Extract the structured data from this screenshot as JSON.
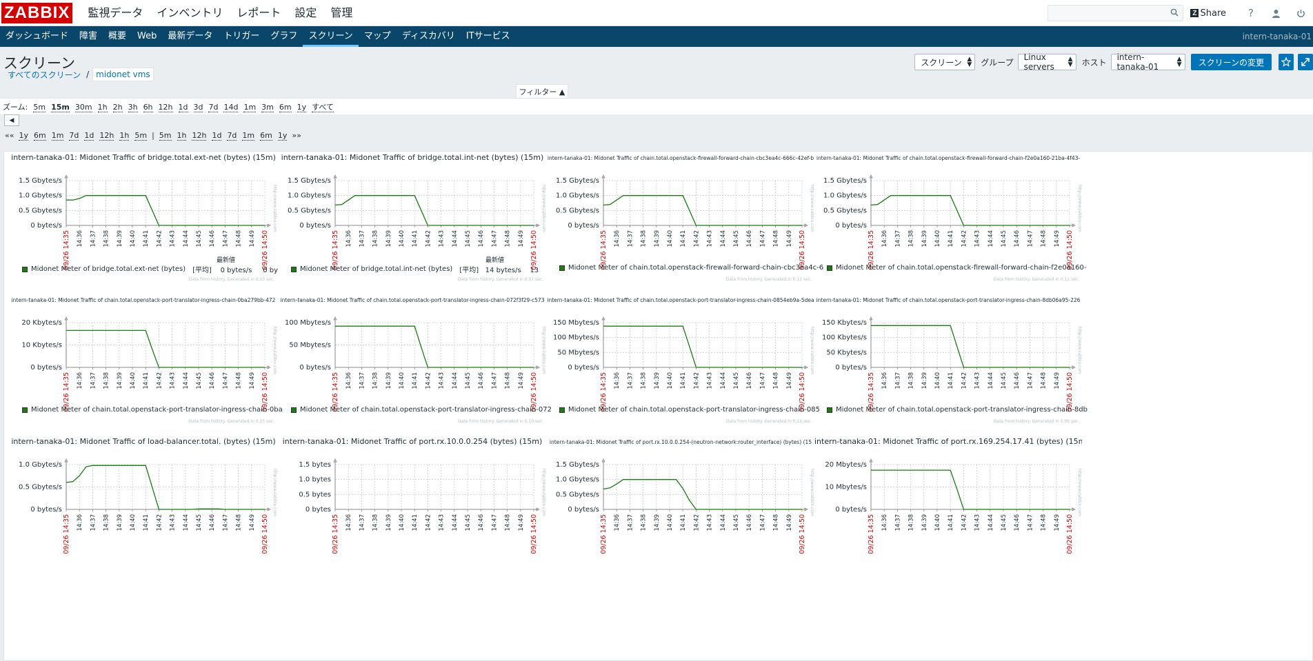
{
  "logo": "ZABBIX",
  "main_menu": [
    "監視データ",
    "インベントリ",
    "レポート",
    "設定",
    "管理"
  ],
  "top_right": {
    "share": "Share",
    "help": "?"
  },
  "sub_menu": {
    "items": [
      "ダッシュボード",
      "障害",
      "概要",
      "Web",
      "最新データ",
      "トリガー",
      "グラフ",
      "スクリーン",
      "マップ",
      "ディスカバリ",
      "ITサービス"
    ],
    "active": "スクリーン",
    "hostname": "intern-tanaka-01"
  },
  "header": {
    "title": "スクリーン",
    "view_select": "スクリーン",
    "group_label": "グループ",
    "group_value": "Linux servers",
    "host_label": "ホスト",
    "host_value": "intern-tanaka-01",
    "change_button": "スクリーンの変更"
  },
  "breadcrumb": {
    "all": "すべてのスクリーン",
    "sep": "/",
    "current": "midonet vms"
  },
  "filter_tab": "フィルター ▲",
  "zoom": {
    "label": "ズーム:",
    "options": [
      "5m",
      "15m",
      "30m",
      "1h",
      "2h",
      "3h",
      "6h",
      "12h",
      "1d",
      "3d",
      "7d",
      "14d",
      "1m",
      "3m",
      "6m",
      "1y",
      "すべて"
    ],
    "selected": "15m"
  },
  "period_nav": {
    "back_start": "««",
    "back": [
      "1y",
      "6m",
      "1m",
      "7d",
      "1d",
      "12h",
      "1h",
      "5m"
    ],
    "sep": "|",
    "forward": [
      "5m",
      "1h",
      "12h",
      "1d",
      "7d",
      "1m",
      "6m",
      "1y"
    ],
    "forward_end": "»»"
  },
  "graphs": [
    {
      "title": "intern-tanaka-01: Midonet Traffic of bridge.total.ext-net (bytes) (15m)",
      "size": "big",
      "legend": "Midonet Meter of bridge.total.ext-net (bytes)",
      "legend_extra": "[平均]    0 bytes/s     0 by",
      "latest_label": "最新値",
      "footer": "Data from history. Generated in 0.03 sec.",
      "yticks": [
        "1.5 Gbytes/s",
        "1.0 Gbytes/s",
        "0.5 Gbytes/s",
        "0 bytes/s"
      ],
      "ymax": 1.5,
      "series": [
        0.85,
        0.85,
        0.9,
        1.0,
        1.0,
        1.0,
        1.0,
        1.0,
        1.0,
        1.0,
        1.0,
        1.0,
        1.0,
        0.5,
        0.0,
        0.0,
        0.0,
        0.0,
        0.0,
        0.0,
        0.0,
        0.0,
        0.0,
        0.0,
        0.0,
        0.0,
        0.0,
        0.0,
        0.0,
        0.0,
        0.0
      ]
    },
    {
      "title": "intern-tanaka-01: Midonet Traffic of bridge.total.int-net (bytes) (15m)",
      "size": "big",
      "legend": "Midonet Meter of bridge.total.int-net (bytes)",
      "legend_extra": "[平均]   14 bytes/s    13",
      "latest_label": "最新値",
      "footer": "Data from history. Generated in 0.07 sec.",
      "yticks": [
        "1.5 Gbytes/s",
        "1.0 Gbytes/s",
        "0.5 Gbytes/s",
        "0 bytes/s"
      ],
      "ymax": 1.5,
      "series": [
        0.68,
        0.7,
        0.85,
        1.0,
        1.0,
        1.0,
        1.0,
        1.0,
        1.0,
        1.0,
        1.0,
        1.0,
        1.0,
        0.5,
        0.0,
        0.0,
        0.0,
        0.0,
        0.0,
        0.0,
        0.0,
        0.0,
        0.0,
        0.0,
        0.0,
        0.0,
        0.0,
        0.0,
        0.0,
        0.0,
        0.0
      ]
    },
    {
      "title": "intern-tanaka-01: Midonet Traffic of chain.total.openstack-firewall-forward-chain-cbc3ea4c-666c-42ef-b",
      "size": "small",
      "legend": "Midonet Meter of chain.total.openstack-firewall-forward-chain-cbc3ea4c-6",
      "legend_extra": "",
      "latest_label": "",
      "footer": "Data from history. Generated in 0.12 sec.",
      "yticks": [
        "1.5 Gbytes/s",
        "1.0 Gbytes/s",
        "0.5 Gbytes/s",
        "0 bytes/s"
      ],
      "ymax": 1.5,
      "series": [
        0.68,
        0.7,
        0.85,
        1.0,
        1.0,
        1.0,
        1.0,
        1.0,
        1.0,
        1.0,
        1.0,
        1.0,
        1.0,
        0.5,
        0.0,
        0.0,
        0.0,
        0.0,
        0.0,
        0.0,
        0.0,
        0.0,
        0.0,
        0.0,
        0.0,
        0.0,
        0.0,
        0.0,
        0.0,
        0.0,
        0.0
      ]
    },
    {
      "title": "intern-tanaka-01: Midonet Traffic of chain.total.openstack-firewall-forward-chain-f2e0a160-21ba-4f43-",
      "size": "small",
      "legend": "Midonet Meter of chain.total.openstack-firewall-forward-chain-f2e0a160-",
      "legend_extra": "",
      "latest_label": "",
      "footer": "Data from history. Generated in 0.11 sec.",
      "yticks": [
        "1.5 Gbytes/s",
        "1.0 Gbytes/s",
        "0.5 Gbytes/s",
        "0 bytes/s"
      ],
      "ymax": 1.5,
      "series": [
        0.68,
        0.7,
        0.85,
        1.0,
        1.0,
        1.0,
        1.0,
        1.0,
        1.0,
        1.0,
        1.0,
        1.0,
        1.0,
        0.5,
        0.0,
        0.0,
        0.0,
        0.0,
        0.0,
        0.0,
        0.0,
        0.0,
        0.0,
        0.0,
        0.0,
        0.0,
        0.0,
        0.0,
        0.0,
        0.0,
        0.0
      ]
    },
    {
      "title": "intern-tanaka-01: Midonet Traffic of chain.total.openstack-port-translator-ingress-chain-0ba279bb-472",
      "size": "small",
      "legend": "Midonet Meter of chain.total.openstack-port-translator-ingress-chain-0ba",
      "legend_extra": "",
      "latest_label": "",
      "footer": "Data from history. Generated in 0.15 sec.",
      "yticks": [
        "20 Kbytes/s",
        "10 Kbytes/s",
        "0 bytes/s"
      ],
      "ymax": 20,
      "series": [
        16.5,
        16.5,
        16.5,
        16.5,
        16.5,
        16.5,
        16.5,
        16.5,
        16.5,
        16.5,
        16.5,
        16.5,
        16.5,
        8,
        0.0,
        0.0,
        0.0,
        0.0,
        0.0,
        0.0,
        0.0,
        0.0,
        0.0,
        0.0,
        0.0,
        0.0,
        0.0,
        0.0,
        0.0,
        0.0,
        0.0
      ]
    },
    {
      "title": "intern-tanaka-01: Midonet Traffic of chain.total.openstack-port-translator-ingress-chain-072f3f29-c573",
      "size": "small",
      "legend": "Midonet Meter of chain.total.openstack-port-translator-ingress-chain-072",
      "legend_extra": "",
      "latest_label": "",
      "footer": "Data from history. Generated in 0.10 sec.",
      "yticks": [
        "100 Mbytes/s",
        "50 Mbytes/s",
        "0 bytes/s"
      ],
      "ymax": 100,
      "series": [
        92,
        92,
        92,
        92,
        92,
        92,
        92,
        92,
        92,
        92,
        92,
        92,
        92,
        45,
        0.0,
        0.0,
        0.0,
        0.0,
        0.0,
        0.0,
        0.0,
        0.0,
        0.0,
        0.0,
        0.0,
        0.0,
        0.0,
        0.0,
        0.0,
        0.0,
        0.0
      ]
    },
    {
      "title": "intern-tanaka-01: Midonet Traffic of chain.total.openstack-port-translator-ingress-chain-0854eb9a-5dea",
      "size": "small",
      "legend": "Midonet Meter of chain.total.openstack-port-translator-ingress-chain-085",
      "legend_extra": "",
      "latest_label": "",
      "footer": "Data from history. Generated in 0.13 sec.",
      "yticks": [
        "150 Mbytes/s",
        "100 Mbytes/s",
        "50 Mbytes/s",
        "0 bytes/s"
      ],
      "ymax": 150,
      "series": [
        138,
        138,
        138,
        138,
        138,
        138,
        138,
        138,
        138,
        138,
        138,
        138,
        138,
        70,
        0.0,
        0.0,
        0.0,
        0.0,
        0.0,
        0.0,
        0.0,
        0.0,
        0.0,
        0.0,
        0.0,
        0.0,
        0.0,
        0.0,
        0.0,
        0.0,
        0.0
      ]
    },
    {
      "title": "intern-tanaka-01: Midonet Traffic of chain.total.openstack-port-translator-ingress-chain-8db06a95-226",
      "size": "small",
      "legend": "Midonet Meter of chain.total.openstack-port-translator-ingress-chain-8db",
      "legend_extra": "",
      "latest_label": "",
      "footer": "Data from history. Generated in 0.06 sec.",
      "yticks": [
        "150 Kbytes/s",
        "100 Kbytes/s",
        "50 Kbytes/s",
        "0 bytes/s"
      ],
      "ymax": 150,
      "series": [
        140,
        140,
        140,
        140,
        140,
        140,
        140,
        140,
        140,
        140,
        140,
        140,
        140,
        70,
        0.0,
        0.0,
        0.0,
        0.0,
        0.0,
        0.0,
        0.0,
        0.0,
        0.0,
        0.0,
        0.0,
        0.0,
        0.0,
        0.0,
        0.0,
        0.0,
        0.0
      ]
    },
    {
      "title": "intern-tanaka-01: Midonet Traffic of load-balancer.total. (bytes) (15m)",
      "size": "big",
      "legend": "",
      "legend_extra": "",
      "latest_label": "",
      "footer": "",
      "yticks": [
        "1.0 Gbytes/s",
        "0.5 Gbytes/s",
        "0 bytes/s"
      ],
      "ymax": 1.0,
      "series": [
        0.6,
        0.62,
        0.75,
        0.95,
        0.98,
        0.98,
        0.98,
        0.98,
        0.98,
        0.98,
        0.98,
        0.98,
        0.98,
        0.49,
        0.0,
        0.0,
        0.0,
        0.0,
        0.0,
        0.0,
        0.01,
        0.01,
        0.01,
        0.01,
        0.0,
        0.0,
        0.0,
        0.0,
        0.0,
        0.0,
        0.0
      ]
    },
    {
      "title": "intern-tanaka-01: Midonet Traffic of port.rx.10.0.0.254 (bytes) (15m)",
      "size": "big",
      "legend": "",
      "legend_extra": "",
      "latest_label": "",
      "footer": "",
      "yticks": [
        "1.5 bytes",
        "1.0 bytes",
        "0.5 bytes",
        "0 bytes"
      ],
      "ymax": 1.5,
      "series": []
    },
    {
      "title": "intern-tanaka-01: Midonet Traffic of port.rx.10.0.0.254-(neutron-network:router_interface) (bytes) (15",
      "size": "small",
      "legend": "",
      "legend_extra": "",
      "latest_label": "",
      "footer": "",
      "yticks": [
        "1.5 Gbytes/s",
        "1.0 Gbytes/s",
        "0.5 Gbytes/s",
        "0 bytes/s"
      ],
      "ymax": 1.5,
      "series": [
        0.68,
        0.72,
        0.85,
        1.0,
        1.0,
        1.0,
        1.0,
        1.0,
        1.0,
        1.0,
        1.0,
        1.0,
        0.7,
        0.3,
        0.0,
        0.0,
        0.0,
        0.0,
        0.0,
        0.0,
        0.0,
        0.0,
        0.0,
        0.0,
        0.0,
        0.0,
        0.0,
        0.0,
        0.0,
        0.0,
        0.0
      ]
    },
    {
      "title": "intern-tanaka-01: Midonet Traffic of port.rx.169.254.17.41 (bytes) (15m)",
      "size": "big",
      "legend": "",
      "legend_extra": "",
      "latest_label": "",
      "footer": "",
      "yticks": [
        "20 Mbytes/s",
        "10 Mbytes/s",
        "0 bytes/s"
      ],
      "ymax": 20,
      "series": [
        17.5,
        17.5,
        17.5,
        17.5,
        17.5,
        17.5,
        17.5,
        17.5,
        17.5,
        17.5,
        17.5,
        17.5,
        17.5,
        9,
        0.0,
        0.0,
        0.0,
        0.0,
        0.0,
        0.0,
        0.0,
        0.0,
        0.0,
        0.0,
        0.0,
        0.0,
        0.0,
        0.0,
        0.0,
        0.0,
        0.0
      ]
    }
  ],
  "xticks": [
    "14:36",
    "14:37",
    "14:38",
    "14:39",
    "14:40",
    "14:41",
    "14:42",
    "14:43",
    "14:44",
    "14:45",
    "14:46",
    "14:47",
    "14:48",
    "14:49"
  ],
  "x_start": "09/26 14:35",
  "x_end": "09/26 14:50",
  "watermark": "http://www.zabbix.com",
  "colors": {
    "line": "#1a7c11",
    "start_end": "#dc0000",
    "grid": "#c8cdd0",
    "accent": "#0275b8",
    "topbar_dark": "#0a466a"
  }
}
